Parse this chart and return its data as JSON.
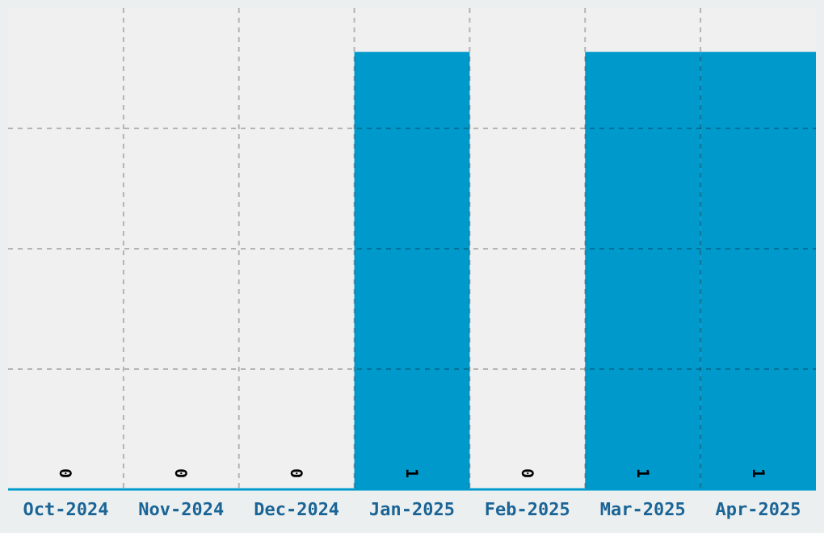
{
  "chart_data": {
    "type": "bar",
    "categories": [
      "Oct-2024",
      "Nov-2024",
      "Dec-2024",
      "Jan-2025",
      "Feb-2025",
      "Mar-2025",
      "Apr-2025"
    ],
    "values": [
      0,
      0,
      0,
      1,
      0,
      1,
      1
    ],
    "color": "#0099cc",
    "data_labels": true,
    "grid": true,
    "tick_labels": "x",
    "ylim": [
      0,
      1.1
    ],
    "yticks": [
      {
        "value": 0.275,
        "label": null
      },
      {
        "value": 0.55,
        "label": null
      },
      {
        "value": 0.825,
        "label": null
      }
    ]
  }
}
